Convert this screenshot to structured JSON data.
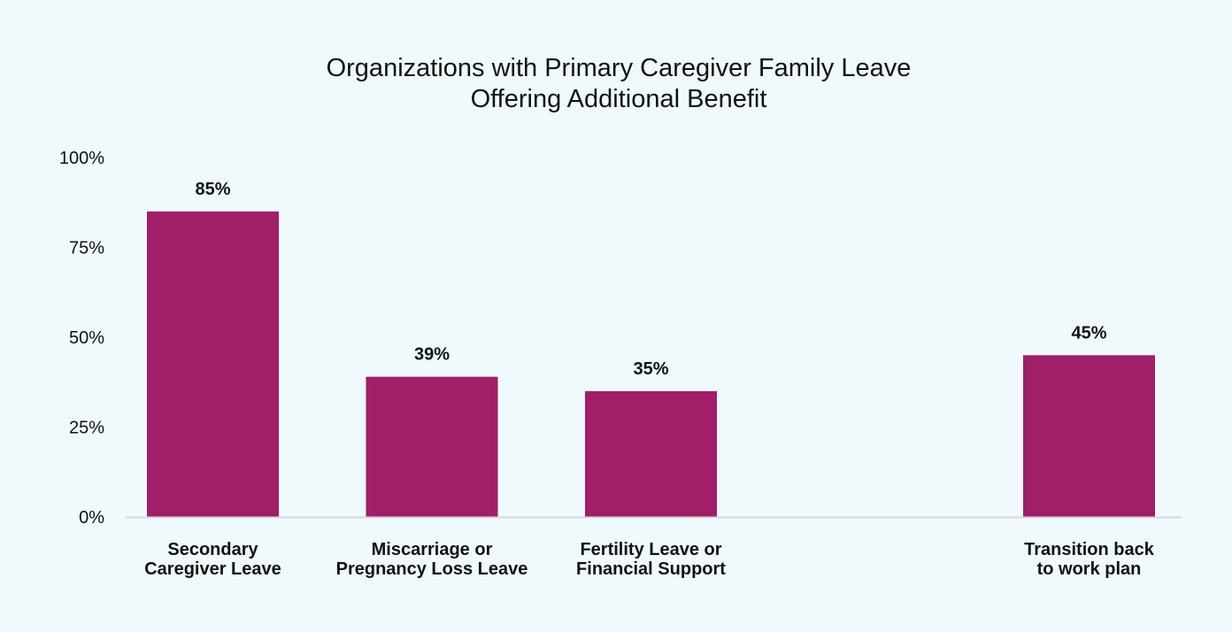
{
  "chart_data": {
    "type": "bar",
    "title": "Organizations with Primary Caregiver Family Leave Offering Additional Benefit",
    "title_lines": [
      "Organizations with Primary Caregiver Family Leave",
      "Offering Additional Benefit"
    ],
    "xlabel": "",
    "ylabel": "",
    "ylim": [
      0,
      100
    ],
    "y_ticks": [
      0,
      25,
      50,
      75,
      100
    ],
    "y_tick_labels": [
      "0%",
      "25%",
      "50%",
      "75%",
      "100%"
    ],
    "grid": false,
    "legend": "none",
    "bar_color": "#a11e69",
    "axis_color": "#d4d8dc",
    "categories": [
      {
        "label": "Secondary Caregiver Leave",
        "lines": [
          "Secondary",
          "Caregiver Leave"
        ]
      },
      {
        "label": "Miscarriage or Pregnancy Loss Leave",
        "lines": [
          "Miscarriage or",
          "Pregnancy Loss Leave"
        ]
      },
      {
        "label": "Fertility Leave or Financial Support",
        "lines": [
          "Fertility Leave or",
          "Financial Support"
        ]
      },
      {
        "label": "",
        "lines": []
      },
      {
        "label": "Transition back to work plan",
        "lines": [
          "Transition back",
          "to work plan"
        ]
      }
    ],
    "values": [
      85,
      39,
      35,
      null,
      45
    ],
    "value_labels": [
      "85%",
      "39%",
      "35%",
      "",
      "45%"
    ]
  }
}
